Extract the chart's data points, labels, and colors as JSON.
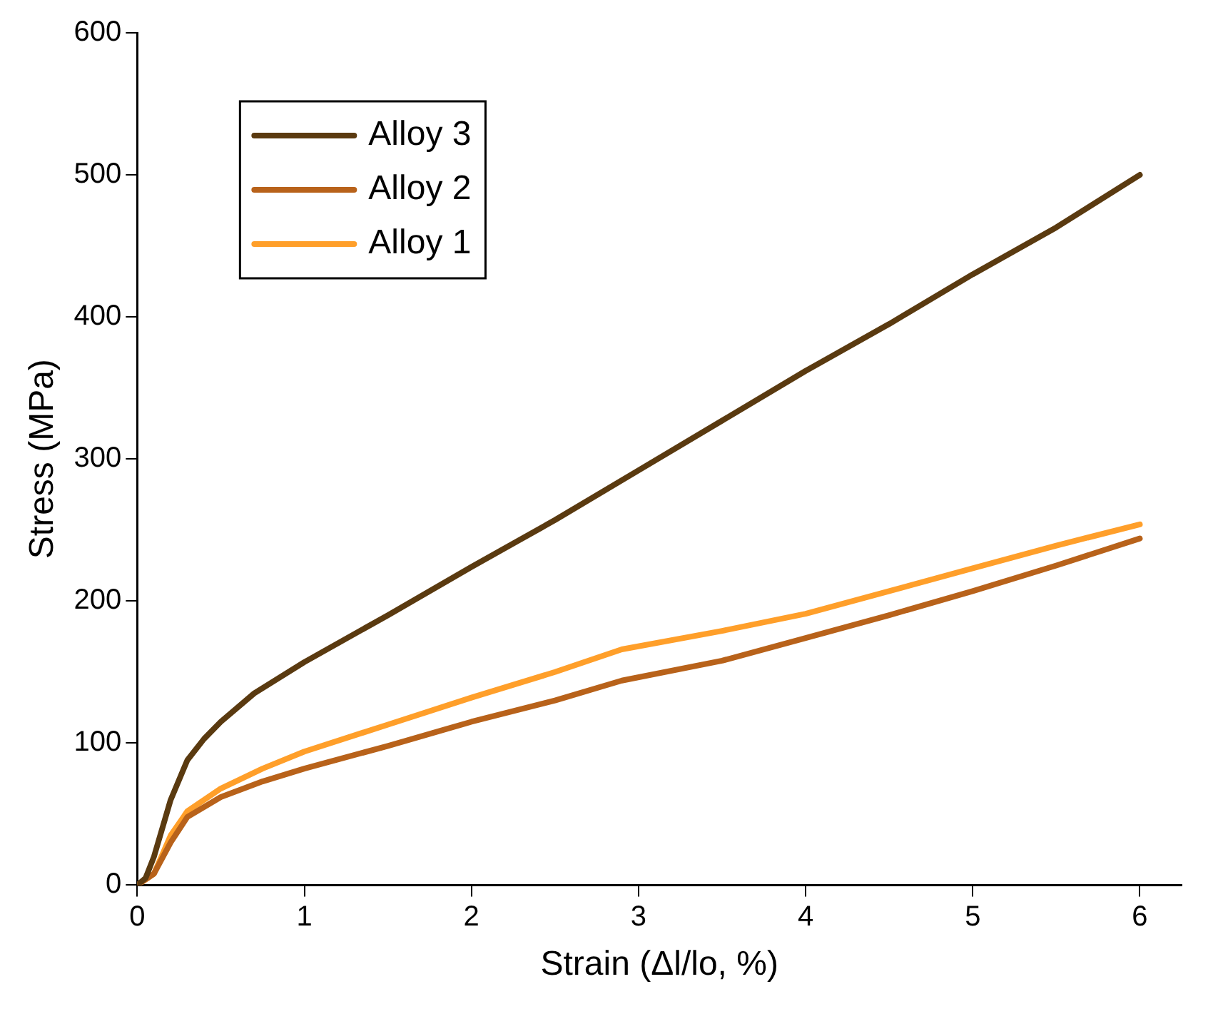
{
  "chart_data": {
    "type": "line",
    "xlabel": "Strain (Δl/lo, %)",
    "ylabel": "Stress (MPa)",
    "xlim": [
      0,
      6.25
    ],
    "xticks": [
      0,
      1,
      2,
      3,
      4,
      5,
      6
    ],
    "ylim": [
      0,
      600
    ],
    "yticks": [
      0,
      100,
      200,
      300,
      400,
      500,
      600
    ],
    "grid": false,
    "legend": "top left",
    "marker": "none",
    "line_style": "solid",
    "series": [
      {
        "name": "Alloy 3",
        "color": "#5a3a10",
        "x": [
          0,
          0.05,
          0.1,
          0.2,
          0.3,
          0.4,
          0.5,
          0.7,
          1,
          1.5,
          2,
          2.5,
          3,
          3.5,
          4,
          4.5,
          5,
          5.5,
          6
        ],
        "values": [
          0,
          5,
          20,
          60,
          88,
          103,
          115,
          135,
          157,
          190,
          224,
          257,
          292,
          327,
          362,
          395,
          430,
          463,
          500
        ]
      },
      {
        "name": "Alloy 2",
        "color": "#b8621a",
        "x": [
          0,
          0.1,
          0.2,
          0.3,
          0.5,
          0.75,
          1,
          1.5,
          2,
          2.5,
          2.9,
          3.5,
          4,
          4.5,
          5,
          5.5,
          6
        ],
        "values": [
          0,
          8,
          30,
          48,
          62,
          73,
          82,
          98,
          115,
          130,
          144,
          158,
          174,
          190,
          207,
          225,
          244
        ]
      },
      {
        "name": "Alloy 1",
        "color": "#ff9f2a",
        "x": [
          0,
          0.1,
          0.2,
          0.3,
          0.5,
          0.75,
          1,
          1.5,
          2,
          2.5,
          2.9,
          3.5,
          4,
          4.5,
          5,
          5.5,
          6
        ],
        "values": [
          0,
          8,
          35,
          52,
          68,
          82,
          94,
          113,
          132,
          150,
          166,
          179,
          191,
          207,
          223,
          239,
          254
        ]
      }
    ]
  }
}
